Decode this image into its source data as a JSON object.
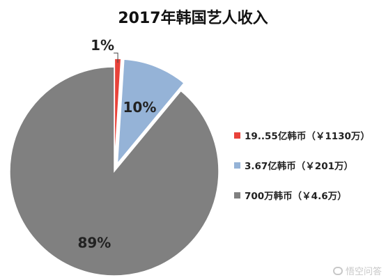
{
  "chart_data": {
    "type": "pie",
    "title": "2017年韩国艺人收入",
    "series": [
      {
        "name": "19..55亿韩币（￥1130万）",
        "value": 1,
        "label": "1%",
        "color": "#e8423a",
        "exploded": true
      },
      {
        "name": "3.67亿韩币（￥201万）",
        "value": 10,
        "label": "10%",
        "color": "#95b3d7",
        "exploded": true
      },
      {
        "name": "700万韩币（￥4.6万）",
        "value": 89,
        "label": "89%",
        "color": "#808080",
        "exploded": false
      }
    ],
    "legend_position": "right"
  },
  "watermark": {
    "text": "悟空问答"
  }
}
